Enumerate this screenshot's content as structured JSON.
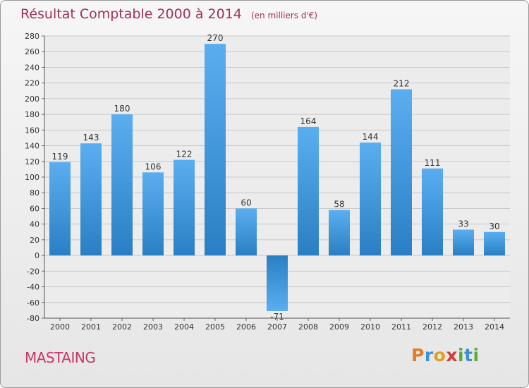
{
  "header": {
    "title": "Résultat Comptable 2000 à 2014",
    "unit": "(en milliers d'€)"
  },
  "commune": "MASTAING",
  "logo": {
    "text": "Proxiti",
    "letters": [
      {
        "ch": "P",
        "color": "#e07b2a"
      },
      {
        "ch": "r",
        "color": "#3d8fd6"
      },
      {
        "ch": "o",
        "color": "#e0a020"
      },
      {
        "ch": "x",
        "color": "#d63b3b"
      },
      {
        "ch": "i",
        "color": "#5aaa3c"
      },
      {
        "ch": "t",
        "color": "#3d8fd6"
      },
      {
        "ch": "i",
        "color": "#5aaa3c"
      }
    ]
  },
  "chart_data": {
    "type": "bar",
    "title": "Résultat Comptable 2000 à 2014",
    "subtitle": "(en milliers d'€)",
    "categories": [
      "2000",
      "2001",
      "2002",
      "2003",
      "2004",
      "2005",
      "2006",
      "2007",
      "2008",
      "2009",
      "2010",
      "2011",
      "2012",
      "2013",
      "2014"
    ],
    "values": [
      119,
      143,
      180,
      106,
      122,
      270,
      60,
      -71,
      164,
      58,
      144,
      212,
      111,
      33,
      30
    ],
    "ylim": [
      -80,
      280
    ],
    "yticks": [
      280,
      260,
      240,
      220,
      200,
      180,
      160,
      140,
      120,
      100,
      80,
      60,
      40,
      20,
      0,
      -20,
      -40,
      -60,
      -80
    ],
    "grid": true,
    "colors": {
      "bar_light": "#5aaef0",
      "bar_dark": "#2a7fc4",
      "title": "#a0315c"
    }
  }
}
